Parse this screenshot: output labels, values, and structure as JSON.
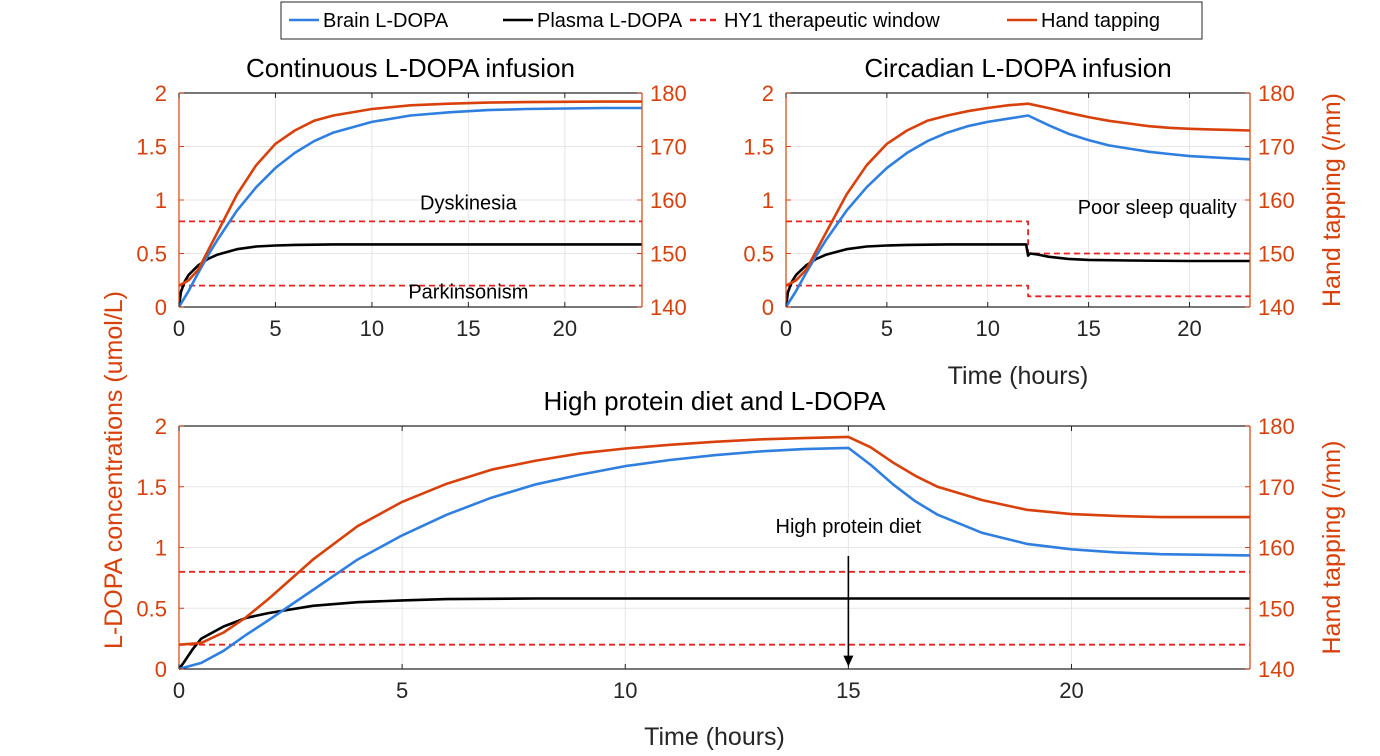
{
  "figure": {
    "shared_ylabel_left": "L-DOPA concentrations (umol/L)",
    "colors": {
      "brain": "#2f7fe0",
      "plasma": "#000000",
      "window": "#e8201f",
      "tapping": "#d9410c",
      "axis_left": "#d9410c",
      "axis_right": "#d9410c",
      "axis": "#262626",
      "grid": "#e6e6e6"
    }
  },
  "legend": {
    "position": "top-center",
    "items": [
      {
        "label": "Brain L-DOPA",
        "color": "#2f7fe0",
        "style": "solid"
      },
      {
        "label": "Plasma L-DOPA",
        "color": "#000000",
        "style": "solid"
      },
      {
        "label": "HY1 therapeutic window",
        "color": "#e8201f",
        "style": "dashed"
      },
      {
        "label": "Hand tapping",
        "color": "#d9410c",
        "style": "solid"
      }
    ]
  },
  "chart_data": [
    {
      "type": "line",
      "title": "Continuous L-DOPA infusion",
      "xlabel": "",
      "ylabel_left": "",
      "ylabel_right": "",
      "xlim": [
        0,
        24
      ],
      "ylim_left": [
        0,
        2
      ],
      "ylim_right": [
        140,
        180
      ],
      "xticks": [
        0,
        5,
        10,
        15,
        20
      ],
      "yticks_left": [
        0,
        0.5,
        1,
        1.5,
        2
      ],
      "yticks_left_labels": [
        "0",
        "0.5",
        "1",
        "1.5",
        "2"
      ],
      "yticks_right": [
        140,
        150,
        160,
        170,
        180
      ],
      "grid": true,
      "series": [
        {
          "name": "Brain L-DOPA",
          "axis": "left",
          "x": [
            0,
            0.5,
            1,
            1.5,
            2,
            3,
            4,
            5,
            6,
            7,
            8,
            10,
            12,
            14,
            16,
            18,
            20,
            22,
            24
          ],
          "y": [
            0,
            0.15,
            0.32,
            0.48,
            0.63,
            0.9,
            1.12,
            1.3,
            1.44,
            1.55,
            1.63,
            1.73,
            1.79,
            1.82,
            1.84,
            1.85,
            1.855,
            1.86,
            1.86
          ]
        },
        {
          "name": "Plasma L-DOPA",
          "axis": "left",
          "x": [
            0,
            0.1,
            0.3,
            0.5,
            1,
            1.5,
            2,
            3,
            4,
            5,
            6,
            8,
            10,
            12,
            16,
            20,
            24
          ],
          "y": [
            0,
            0.14,
            0.24,
            0.3,
            0.39,
            0.45,
            0.49,
            0.54,
            0.565,
            0.575,
            0.58,
            0.585,
            0.585,
            0.585,
            0.585,
            0.585,
            0.585
          ]
        },
        {
          "name": "HY1 upper bound",
          "axis": "left",
          "style": "dashed",
          "x": [
            0,
            24
          ],
          "y": [
            0.8,
            0.8
          ]
        },
        {
          "name": "HY1 lower bound",
          "axis": "left",
          "style": "dashed",
          "x": [
            0,
            24
          ],
          "y": [
            0.2,
            0.2
          ]
        },
        {
          "name": "Hand tapping",
          "axis": "right",
          "x": [
            0,
            0.5,
            1,
            1.5,
            2,
            3,
            4,
            5,
            6,
            7,
            8,
            10,
            12,
            14,
            16,
            18,
            20,
            22,
            24
          ],
          "y": [
            144,
            145,
            147,
            150.5,
            154,
            161,
            166.5,
            170.5,
            173,
            174.8,
            175.8,
            177,
            177.7,
            178,
            178.2,
            178.3,
            178.35,
            178.4,
            178.4
          ]
        }
      ],
      "annotations": [
        {
          "text": "Dyskinesia",
          "x": 15,
          "y": 0.91
        },
        {
          "text": "Parkinsonism",
          "x": 15,
          "y": 0.08
        }
      ]
    },
    {
      "type": "line",
      "title": "Circadian L-DOPA infusion",
      "xlabel": "Time (hours)",
      "ylabel_left": "",
      "ylabel_right": "Hand tapping (/mn)",
      "xlim": [
        0,
        23
      ],
      "ylim_left": [
        0,
        2
      ],
      "ylim_right": [
        140,
        180
      ],
      "xticks": [
        0,
        5,
        10,
        15,
        20
      ],
      "yticks_left": [
        0,
        0.5,
        1,
        1.5,
        2
      ],
      "yticks_left_labels": [
        "0",
        "0.5",
        "1",
        "1.5",
        "2"
      ],
      "yticks_right": [
        140,
        150,
        160,
        170,
        180
      ],
      "grid": true,
      "series": [
        {
          "name": "Brain L-DOPA",
          "axis": "left",
          "x": [
            0,
            0.5,
            1,
            1.5,
            2,
            3,
            4,
            5,
            6,
            7,
            8,
            9,
            10,
            11,
            12,
            13,
            14,
            15,
            16,
            17,
            18,
            19,
            20,
            21,
            22,
            23
          ],
          "y": [
            0,
            0.15,
            0.32,
            0.48,
            0.63,
            0.9,
            1.12,
            1.3,
            1.44,
            1.55,
            1.63,
            1.69,
            1.73,
            1.76,
            1.79,
            1.7,
            1.62,
            1.56,
            1.51,
            1.48,
            1.45,
            1.43,
            1.41,
            1.4,
            1.39,
            1.38
          ]
        },
        {
          "name": "Plasma L-DOPA",
          "axis": "left",
          "x": [
            0,
            0.1,
            0.3,
            0.5,
            1,
            1.5,
            2,
            3,
            4,
            5,
            6,
            8,
            10,
            11.9,
            12,
            12.1,
            12.5,
            13,
            14,
            15,
            17,
            20,
            23
          ],
          "y": [
            0,
            0.14,
            0.24,
            0.3,
            0.39,
            0.45,
            0.49,
            0.54,
            0.565,
            0.575,
            0.58,
            0.585,
            0.585,
            0.585,
            0.48,
            0.5,
            0.49,
            0.47,
            0.45,
            0.44,
            0.435,
            0.43,
            0.43
          ]
        },
        {
          "name": "HY1 upper bound",
          "axis": "left",
          "style": "dashed",
          "x": [
            0,
            12,
            12,
            23
          ],
          "y": [
            0.8,
            0.8,
            0.5,
            0.5
          ]
        },
        {
          "name": "HY1 lower bound",
          "axis": "left",
          "style": "dashed",
          "x": [
            0,
            12,
            12,
            23
          ],
          "y": [
            0.2,
            0.2,
            0.1,
            0.1
          ]
        },
        {
          "name": "Hand tapping",
          "axis": "right",
          "x": [
            0,
            0.5,
            1,
            1.5,
            2,
            3,
            4,
            5,
            6,
            7,
            8,
            9,
            10,
            11,
            12,
            13,
            14,
            15,
            16,
            17,
            18,
            19,
            20,
            21,
            22,
            23
          ],
          "y": [
            144,
            145,
            147,
            150.5,
            154,
            161,
            166.5,
            170.5,
            173,
            174.8,
            175.8,
            176.6,
            177.2,
            177.7,
            178,
            177.2,
            176.3,
            175.5,
            174.8,
            174.3,
            173.8,
            173.5,
            173.3,
            173.2,
            173.1,
            173
          ]
        }
      ],
      "annotations": [
        {
          "text": "Poor sleep quality",
          "x": 18.4,
          "y": 0.87
        }
      ]
    },
    {
      "type": "line",
      "title": "High protein diet and L-DOPA",
      "xlabel": "Time (hours)",
      "ylabel_left": "L-DOPA concentrations (umol/L)",
      "ylabel_right": "Hand tapping (/mn)",
      "xlim": [
        0,
        24
      ],
      "ylim_left": [
        0,
        2
      ],
      "ylim_right": [
        140,
        180
      ],
      "xticks": [
        0,
        5,
        10,
        15,
        20
      ],
      "yticks_left": [
        0,
        0.5,
        1,
        1.5,
        2
      ],
      "yticks_left_labels": [
        "0",
        "0.5",
        "1",
        "1.5",
        "2"
      ],
      "yticks_right": [
        140,
        150,
        160,
        170,
        180
      ],
      "grid": true,
      "series": [
        {
          "name": "Brain L-DOPA",
          "axis": "left",
          "x": [
            0,
            0.5,
            1,
            1.5,
            2,
            3,
            4,
            5,
            6,
            7,
            8,
            9,
            10,
            11,
            12,
            13,
            14,
            15,
            15.5,
            16,
            16.5,
            17,
            18,
            19,
            20,
            21,
            22,
            23,
            24
          ],
          "y": [
            0,
            0.05,
            0.15,
            0.28,
            0.4,
            0.65,
            0.9,
            1.1,
            1.27,
            1.41,
            1.52,
            1.6,
            1.67,
            1.72,
            1.76,
            1.79,
            1.81,
            1.82,
            1.68,
            1.52,
            1.38,
            1.27,
            1.12,
            1.03,
            0.985,
            0.96,
            0.945,
            0.94,
            0.935
          ]
        },
        {
          "name": "Plasma L-DOPA",
          "axis": "left",
          "x": [
            0,
            0.1,
            0.3,
            0.5,
            1,
            1.5,
            2,
            3,
            4,
            5,
            6,
            8,
            10,
            12,
            16,
            20,
            24
          ],
          "y": [
            0,
            0.05,
            0.16,
            0.25,
            0.35,
            0.42,
            0.46,
            0.52,
            0.55,
            0.565,
            0.575,
            0.58,
            0.58,
            0.58,
            0.58,
            0.58,
            0.58
          ]
        },
        {
          "name": "HY1 upper bound",
          "axis": "left",
          "style": "dashed",
          "x": [
            0,
            24
          ],
          "y": [
            0.8,
            0.8
          ]
        },
        {
          "name": "HY1 lower bound",
          "axis": "left",
          "style": "dashed",
          "x": [
            0,
            24
          ],
          "y": [
            0.2,
            0.2
          ]
        },
        {
          "name": "Hand tapping",
          "axis": "right",
          "x": [
            0,
            0.5,
            1,
            1.5,
            2,
            3,
            4,
            5,
            6,
            7,
            8,
            9,
            10,
            11,
            12,
            13,
            14,
            15,
            15.5,
            16,
            16.5,
            17,
            18,
            19,
            20,
            21,
            22,
            23,
            24
          ],
          "y": [
            144,
            144.3,
            146,
            148.5,
            151.5,
            158,
            163.5,
            167.5,
            170.5,
            172.8,
            174.3,
            175.5,
            176.3,
            176.9,
            177.4,
            177.8,
            178,
            178.2,
            176.5,
            174,
            171.8,
            170,
            167.8,
            166.2,
            165.5,
            165.2,
            165,
            165,
            165
          ]
        }
      ],
      "annotations": [
        {
          "text": "High protein diet",
          "x": 15,
          "y": 1.12,
          "arrow_from": 0.93,
          "arrow_to": 0.02
        }
      ]
    }
  ]
}
